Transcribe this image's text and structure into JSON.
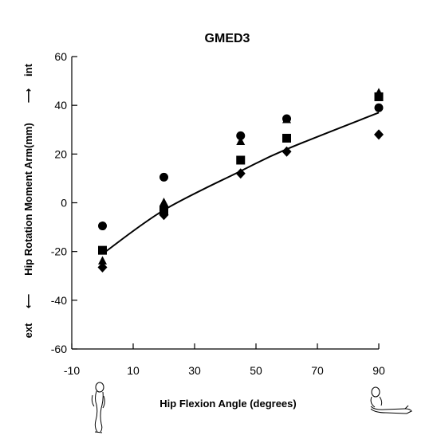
{
  "chart_data": {
    "type": "scatter",
    "title": "GMED3",
    "xlabel": "Hip Flexion Angle (degrees)",
    "ylabel": {
      "left": "ext",
      "middle": "Hip Rotation Moment Arm(mm)",
      "right": "int"
    },
    "xlim": [
      -10,
      90
    ],
    "ylim": [
      -60,
      60
    ],
    "xticks": [
      -10,
      10,
      30,
      50,
      70,
      90
    ],
    "yticks": [
      -60,
      -40,
      -20,
      0,
      20,
      40,
      60
    ],
    "grid": false,
    "x": [
      0,
      20,
      45,
      60,
      90
    ],
    "series": [
      {
        "marker": "circle",
        "values": [
          -9.5,
          10.5,
          27.5,
          34.5,
          39
        ]
      },
      {
        "marker": "triangle",
        "values": [
          -24,
          0,
          25,
          34,
          45
        ]
      },
      {
        "marker": "square",
        "values": [
          -19.5,
          -3,
          17.5,
          26.5,
          43.5
        ]
      },
      {
        "marker": "diamond",
        "values": [
          -26.5,
          -5,
          12,
          21,
          28
        ]
      }
    ],
    "fit_curve": {
      "x": [
        0,
        20,
        45,
        60,
        90
      ],
      "y": [
        -21,
        -3,
        13,
        22,
        37
      ]
    }
  },
  "icons": {
    "left": "standing-figure-icon",
    "right": "seated-figure-icon"
  }
}
